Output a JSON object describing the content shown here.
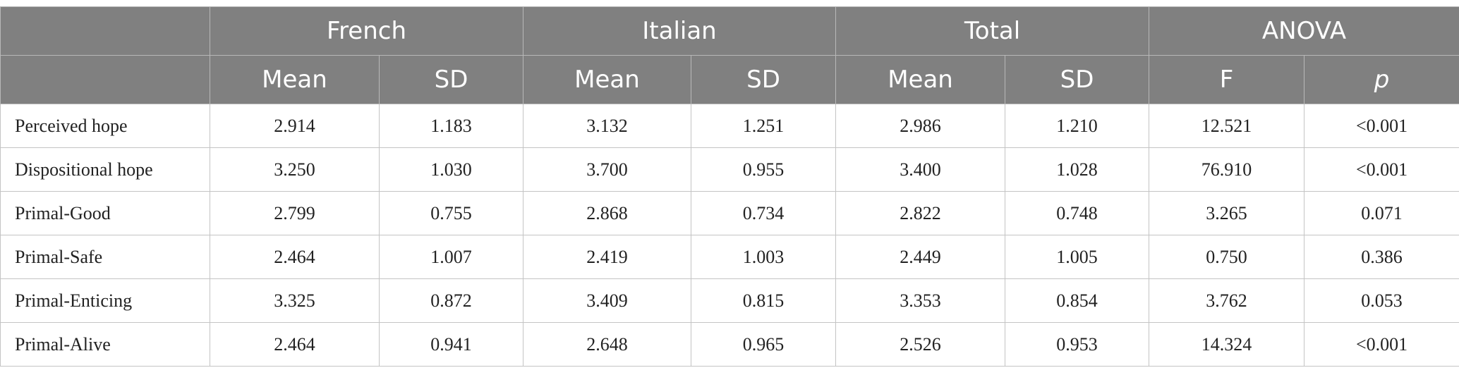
{
  "table": {
    "groups": [
      "French",
      "Italian",
      "Total",
      "ANOVA"
    ],
    "subheaders": [
      "Mean",
      "SD",
      "Mean",
      "SD",
      "Mean",
      "SD",
      "F",
      "p"
    ],
    "rows": [
      [
        "Perceived hope",
        "2.914",
        "1.183",
        "3.132",
        "1.251",
        "2.986",
        "1.210",
        "12.521",
        "<0.001"
      ],
      [
        "Dispositional hope",
        "3.250",
        "1.030",
        "3.700",
        "0.955",
        "3.400",
        "1.028",
        "76.910",
        "<0.001"
      ],
      [
        "Primal-Good",
        "2.799",
        "0.755",
        "2.868",
        "0.734",
        "2.822",
        "0.748",
        "3.265",
        "0.071"
      ],
      [
        "Primal-Safe",
        "2.464",
        "1.007",
        "2.419",
        "1.003",
        "2.449",
        "1.005",
        "0.750",
        "0.386"
      ],
      [
        "Primal-Enticing",
        "3.325",
        "0.872",
        "3.409",
        "0.815",
        "3.353",
        "0.854",
        "3.762",
        "0.053"
      ],
      [
        "Primal-Alive",
        "2.464",
        "0.941",
        "2.648",
        "0.965",
        "2.526",
        "0.953",
        "14.324",
        "<0.001"
      ]
    ]
  }
}
